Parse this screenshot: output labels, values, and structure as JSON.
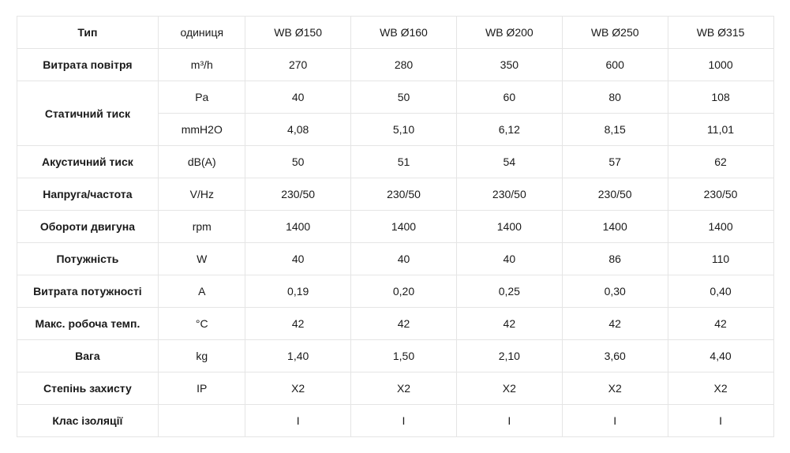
{
  "table": {
    "background_color": "#ffffff",
    "border_color": "#e5e5e5",
    "text_color": "#1a1a1a",
    "font_size_pt": 10.5,
    "header": {
      "type_label": "Тип",
      "unit_label": "одиниця",
      "models": [
        "WB Ø150",
        "WB Ø160",
        "WB Ø200",
        "WB Ø250",
        "WB Ø315"
      ]
    },
    "rows": [
      {
        "label": "Витрата повітря",
        "unit": "m³/h",
        "values": [
          "270",
          "280",
          "350",
          "600",
          "1000"
        ],
        "label_rowspan": 1
      },
      {
        "label": "Статичний тиск",
        "unit": "Pa",
        "values": [
          "40",
          "50",
          "60",
          "80",
          "108"
        ],
        "label_rowspan": 2
      },
      {
        "label": "",
        "unit": "mmH2O",
        "values": [
          "4,08",
          "5,10",
          "6,12",
          "8,15",
          "11,01"
        ],
        "label_rowspan": 0
      },
      {
        "label": "Акустичний тиск",
        "unit": "dB(A)",
        "values": [
          "50",
          "51",
          "54",
          "57",
          "62"
        ],
        "label_rowspan": 1
      },
      {
        "label": "Напруга/частота",
        "unit": "V/Hz",
        "values": [
          "230/50",
          "230/50",
          "230/50",
          "230/50",
          "230/50"
        ],
        "label_rowspan": 1
      },
      {
        "label": "Обороти двигуна",
        "unit": "rpm",
        "values": [
          "1400",
          "1400",
          "1400",
          "1400",
          "1400"
        ],
        "label_rowspan": 1
      },
      {
        "label": "Потужність",
        "unit": "W",
        "values": [
          "40",
          "40",
          "40",
          "86",
          "110"
        ],
        "label_rowspan": 1
      },
      {
        "label": "Витрата потужності",
        "unit": "A",
        "values": [
          "0,19",
          "0,20",
          "0,25",
          "0,30",
          "0,40"
        ],
        "label_rowspan": 1
      },
      {
        "label": "Макс. робоча темп.",
        "unit": "°C",
        "values": [
          "42",
          "42",
          "42",
          "42",
          "42"
        ],
        "label_rowspan": 1
      },
      {
        "label": "Вага",
        "unit": "kg",
        "values": [
          "1,40",
          "1,50",
          "2,10",
          "3,60",
          "4,40"
        ],
        "label_rowspan": 1
      },
      {
        "label": "Степінь захисту",
        "unit": "IP",
        "values": [
          "X2",
          "X2",
          "X2",
          "X2",
          "X2"
        ],
        "label_rowspan": 1
      },
      {
        "label": "Клас ізоляції",
        "unit": "",
        "values": [
          "I",
          "I",
          "I",
          "I",
          "I"
        ],
        "label_rowspan": 1
      }
    ]
  }
}
